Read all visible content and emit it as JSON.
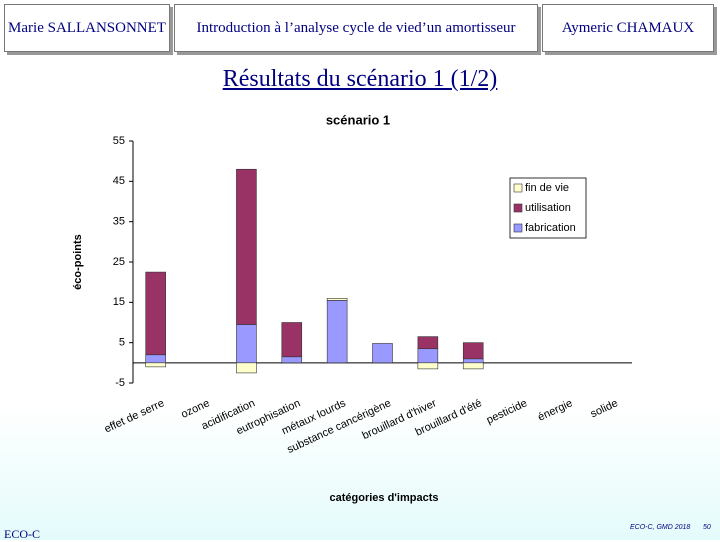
{
  "header": {
    "left": "Marie SALLANSONNET",
    "center": "Introduction à l’analyse cycle de vied’un amortisseur",
    "right": "Aymeric CHAMAUX"
  },
  "slide_title": "Résultats du scénario 1 (1/2)",
  "footer": {
    "left": "ECO-C",
    "center": "ECO-C, GMD 2018",
    "page": "50"
  },
  "chart_data": {
    "type": "stacked_bar",
    "title": "scénario 1",
    "x_label": "catégories d'impacts",
    "y_label": "éco-points",
    "categories": [
      "effet de serre",
      "ozone",
      "acidification",
      "eutrophisation",
      "métaux lourds",
      "substance cancérigène",
      "brouillard d'hiver",
      "brouillard d'été",
      "pesticide",
      "énergie",
      "solide"
    ],
    "series": [
      {
        "name": "fin de vie",
        "color": "#ffffcc",
        "values": [
          -1,
          0,
          -2.5,
          0,
          0.5,
          0,
          -1.5,
          -1.5,
          0,
          0,
          0
        ]
      },
      {
        "name": "utilisation",
        "color": "#993366",
        "values": [
          20.5,
          0,
          38.5,
          8.5,
          0,
          0,
          3,
          4,
          0,
          0,
          0
        ]
      },
      {
        "name": "fabrication",
        "color": "#9999ff",
        "values": [
          2,
          0,
          9.5,
          1.5,
          15.5,
          4.8,
          3.5,
          1,
          0,
          0,
          0
        ]
      }
    ],
    "ylim": [
      -5,
      55
    ],
    "yticks": [
      -5,
      5,
      15,
      25,
      35,
      45,
      55
    ],
    "legend": "right"
  }
}
